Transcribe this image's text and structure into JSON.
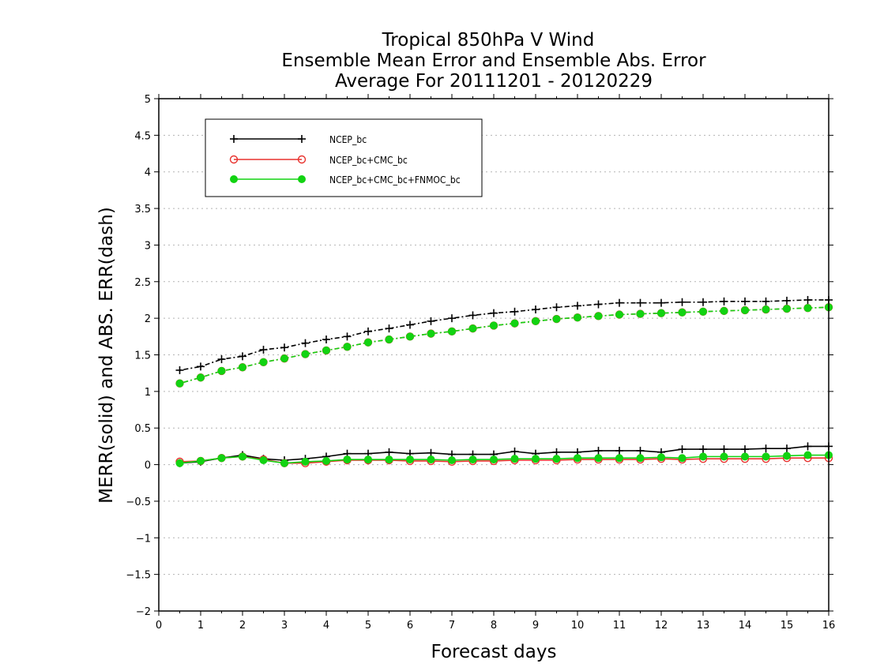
{
  "colors": {
    "NCEP_bc": "#000000",
    "NCEP_bc+CMC_bc": "#e8322e",
    "NCEP_bc+CMC_bc+FNMOC_bc": "#12d312",
    "grid": "#b4b4b4"
  },
  "chart_data": {
    "type": "line",
    "title": [
      "Tropical 850hPa V Wind",
      "Ensemble Mean Error and Ensemble Abs. Error",
      "Average For 20111201 - 20120229"
    ],
    "xlabel": "Forecast days",
    "ylabel": "MERR(solid) and ABS. ERR(dash)",
    "xlim": [
      0,
      16
    ],
    "ylim": [
      -2,
      5
    ],
    "xticks": [
      0,
      1,
      2,
      3,
      4,
      5,
      6,
      7,
      8,
      9,
      10,
      11,
      12,
      13,
      14,
      15,
      16
    ],
    "yticks": [
      -2,
      -1.5,
      -1,
      -0.5,
      0,
      0.5,
      1,
      1.5,
      2,
      2.5,
      3,
      3.5,
      4,
      4.5,
      5
    ],
    "grid": "horizontal dotted",
    "legend_position": "top-left",
    "x": [
      0.5,
      1,
      1.5,
      2,
      2.5,
      3,
      3.5,
      4,
      4.5,
      5,
      5.5,
      6,
      6.5,
      7,
      7.5,
      8,
      8.5,
      9,
      9.5,
      10,
      10.5,
      11,
      11.5,
      12,
      12.5,
      13,
      13.5,
      14,
      14.5,
      15,
      15.5,
      16
    ],
    "series": [
      {
        "name": "NCEP_bc",
        "marker": "plus",
        "merr": [
          0.02,
          0.04,
          0.09,
          0.13,
          0.08,
          0.06,
          0.08,
          0.11,
          0.15,
          0.15,
          0.17,
          0.15,
          0.16,
          0.14,
          0.14,
          0.14,
          0.18,
          0.15,
          0.17,
          0.17,
          0.19,
          0.19,
          0.19,
          0.17,
          0.21,
          0.21,
          0.21,
          0.21,
          0.22,
          0.22,
          0.25,
          0.25
        ],
        "abs_err": [
          1.29,
          1.34,
          1.44,
          1.48,
          1.57,
          1.6,
          1.66,
          1.71,
          1.75,
          1.82,
          1.86,
          1.91,
          1.96,
          2.0,
          2.04,
          2.07,
          2.09,
          2.12,
          2.15,
          2.17,
          2.19,
          2.21,
          2.21,
          2.21,
          2.22,
          2.22,
          2.23,
          2.23,
          2.23,
          2.24,
          2.25,
          2.25
        ]
      },
      {
        "name": "NCEP_bc+CMC_bc",
        "marker": "open-circle",
        "merr": [
          0.04,
          0.05,
          0.09,
          0.11,
          0.07,
          0.02,
          0.02,
          0.04,
          0.06,
          0.06,
          0.06,
          0.05,
          0.05,
          0.04,
          0.05,
          0.05,
          0.06,
          0.06,
          0.06,
          0.07,
          0.07,
          0.07,
          0.07,
          0.08,
          0.07,
          0.08,
          0.08,
          0.08,
          0.08,
          0.09,
          0.09,
          0.09
        ],
        "abs_err": [
          1.11,
          1.19,
          1.28,
          1.33,
          1.4,
          1.45,
          1.51,
          1.56,
          1.61,
          1.67,
          1.71,
          1.75,
          1.79,
          1.82,
          1.86,
          1.9,
          1.93,
          1.96,
          1.99,
          2.01,
          2.03,
          2.05,
          2.06,
          2.07,
          2.08,
          2.09,
          2.1,
          2.11,
          2.12,
          2.13,
          2.14,
          2.15
        ]
      },
      {
        "name": "NCEP_bc+CMC_bc+FNMOC_bc",
        "marker": "filled-circle",
        "merr": [
          0.02,
          0.05,
          0.09,
          0.11,
          0.06,
          0.02,
          0.04,
          0.05,
          0.07,
          0.07,
          0.07,
          0.07,
          0.07,
          0.06,
          0.07,
          0.07,
          0.08,
          0.08,
          0.08,
          0.09,
          0.09,
          0.09,
          0.09,
          0.1,
          0.09,
          0.11,
          0.11,
          0.11,
          0.11,
          0.12,
          0.13,
          0.13
        ],
        "abs_err": [
          1.11,
          1.19,
          1.28,
          1.33,
          1.4,
          1.45,
          1.51,
          1.56,
          1.61,
          1.67,
          1.71,
          1.75,
          1.79,
          1.82,
          1.86,
          1.9,
          1.93,
          1.96,
          1.99,
          2.01,
          2.03,
          2.05,
          2.06,
          2.07,
          2.08,
          2.09,
          2.1,
          2.11,
          2.12,
          2.13,
          2.14,
          2.15
        ]
      }
    ]
  }
}
